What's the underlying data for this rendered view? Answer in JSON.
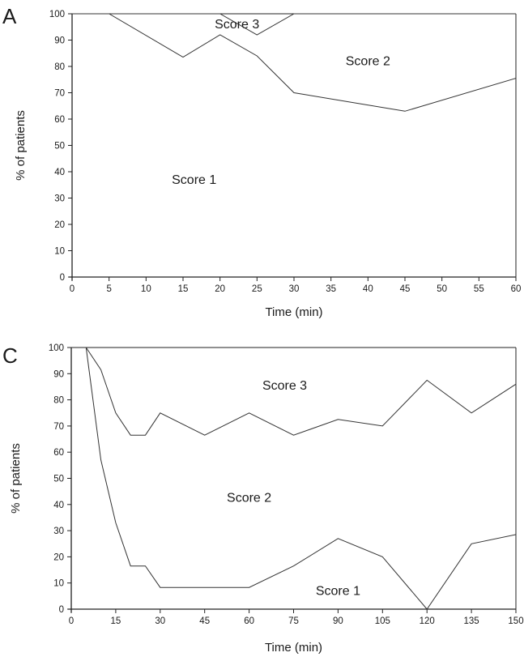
{
  "figure": {
    "panels": [
      "A",
      "C"
    ]
  },
  "chart_data": [
    {
      "type": "area",
      "panel": "A",
      "xlabel": "Time (min)",
      "ylabel": "% of patients",
      "xlim": [
        0,
        60
      ],
      "ylim": [
        0,
        100
      ],
      "x_ticks": [
        0,
        5,
        10,
        15,
        20,
        25,
        30,
        35,
        40,
        45,
        50,
        55,
        60
      ],
      "y_ticks": [
        0,
        10,
        20,
        30,
        40,
        50,
        60,
        70,
        80,
        90,
        100
      ],
      "stacked": true,
      "boundaries": [
        {
          "between": [
            "Score 1",
            "Score 2"
          ],
          "x": [
            0,
            5,
            15,
            20,
            25,
            30,
            45,
            60
          ],
          "y": [
            100,
            100,
            83.5,
            92,
            84,
            70,
            63,
            75.5
          ]
        },
        {
          "between": [
            "Score 2",
            "Score 3"
          ],
          "x": [
            0,
            15,
            20,
            25,
            30,
            60
          ],
          "y": [
            100,
            100,
            100,
            92,
            100,
            100
          ]
        }
      ],
      "region_labels": [
        {
          "text": "Score 1",
          "x": 16.5,
          "y": 37
        },
        {
          "text": "Score 2",
          "x": 40,
          "y": 82
        },
        {
          "text": "Score 3",
          "x": 22.3,
          "y": 96
        }
      ]
    },
    {
      "type": "area",
      "panel": "C",
      "xlabel": "Time (min)",
      "ylabel": "% of patients",
      "xlim": [
        0,
        150
      ],
      "ylim": [
        0,
        100
      ],
      "x_ticks": [
        0,
        15,
        30,
        45,
        60,
        75,
        90,
        105,
        120,
        135,
        150
      ],
      "y_ticks": [
        0,
        10,
        20,
        30,
        40,
        50,
        60,
        70,
        80,
        90,
        100
      ],
      "stacked": true,
      "boundaries": [
        {
          "between": [
            "Score 1",
            "Score 2"
          ],
          "x": [
            5,
            10,
            15,
            20,
            25,
            30,
            45,
            60,
            75,
            90,
            105,
            120,
            135,
            150
          ],
          "y": [
            100,
            57,
            33,
            16.5,
            16.5,
            8.3,
            8.3,
            8.3,
            16.5,
            27,
            20,
            0,
            25,
            28.5
          ]
        },
        {
          "between": [
            "Score 2",
            "Score 3"
          ],
          "x": [
            5,
            10,
            15,
            20,
            25,
            30,
            45,
            60,
            75,
            90,
            105,
            120,
            135,
            150
          ],
          "y": [
            100,
            91.5,
            75,
            66.5,
            66.5,
            75,
            66.5,
            75,
            66.5,
            72.5,
            70,
            87.5,
            75,
            86
          ]
        }
      ],
      "region_labels": [
        {
          "text": "Score 3",
          "x": 72,
          "y": 85.5
        },
        {
          "text": "Score 2",
          "x": 60,
          "y": 42.5
        },
        {
          "text": "Score 1",
          "x": 90,
          "y": 7
        }
      ]
    }
  ]
}
